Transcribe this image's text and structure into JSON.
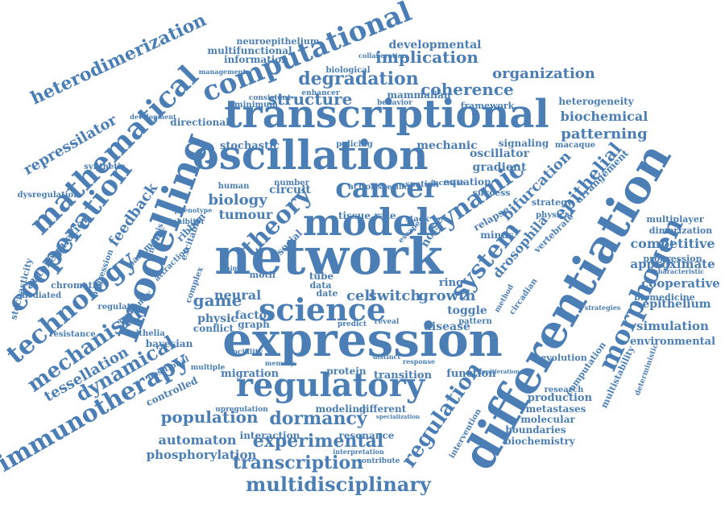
{
  "accent_color": "#4a7eb5",
  "words": [
    "network",
    "expression",
    "differentiation",
    "transcriptional",
    "oscillation",
    "model",
    "modelling",
    "regulatory",
    "science",
    "cancer",
    "computational",
    "mathematical",
    "cooperation",
    "technology",
    "immunotherapy",
    "mechanism",
    "dynamical",
    "morphogen",
    "theory",
    "dynamic",
    "system",
    "regulation",
    "heterodimerization",
    "multidisciplinary",
    "experimental",
    "transcription",
    "population",
    "dormancy",
    "automaton",
    "phosphorylation",
    "degradation",
    "implication",
    "structure",
    "coherence",
    "organization",
    "developmental",
    "biochemical",
    "patterning",
    "epithelial",
    "bifurcation",
    "drosophila",
    "competitive",
    "approximate",
    "cooperative",
    "epithelium",
    "simulation",
    "environmental",
    "production",
    "metastases",
    "molecular",
    "boundaries",
    "biochemistry",
    "game",
    "cell",
    "growth",
    "switch",
    "biology",
    "tumour",
    "circuit",
    "feedback",
    "repressilator",
    "autoregulation",
    "tessellation",
    "disease",
    "toggle",
    "gradient",
    "oscillator",
    "signaling",
    "mechanic",
    "stochastic",
    "directional",
    "mammalian",
    "framework",
    "heterogeneity",
    "multiplayer",
    "dimerization",
    "progression",
    "biomedicine",
    "evolution",
    "research",
    "migration",
    "transition",
    "function",
    "protein",
    "modeling",
    "different",
    "interaction",
    "resonance",
    "bayesian",
    "controlled",
    "neural",
    "physic",
    "factor",
    "conflict",
    "graph",
    "information",
    "multifunctional",
    "neuroepithelium",
    "minimum",
    "consistent",
    "policing",
    "equation",
    "spatial",
    "tissue",
    "rate",
    "stack",
    "noise",
    "ring",
    "relapse",
    "minus",
    "vertebrate",
    "arrangement",
    "strategy",
    "success",
    "macaque",
    "physical",
    "computation",
    "multistability",
    "deterministic",
    "synthetic",
    "dysregulation",
    "stochasticity",
    "chromatin",
    "mediated",
    "regulate",
    "immunity",
    "resistance",
    "epithelia",
    "positional",
    "multiple",
    "upregulation",
    "sociality",
    "collaboration",
    "biological",
    "enhancer",
    "behavior",
    "management",
    "development",
    "aggression",
    "parameter",
    "analysis",
    "attraction",
    "ribbon",
    "excitable",
    "complex",
    "inhibitor",
    "phenotype",
    "human",
    "motif",
    "tube",
    "data",
    "date",
    "social",
    "number",
    "action",
    "specific",
    "increase",
    "escape",
    "pattern",
    "reveal",
    "predict",
    "contribute",
    "interpretation",
    "intervention",
    "circadian",
    "method",
    "strategies",
    "characteristic",
    "animal",
    "memory",
    "distinct",
    "response",
    "specialization",
    "proliferation"
  ]
}
